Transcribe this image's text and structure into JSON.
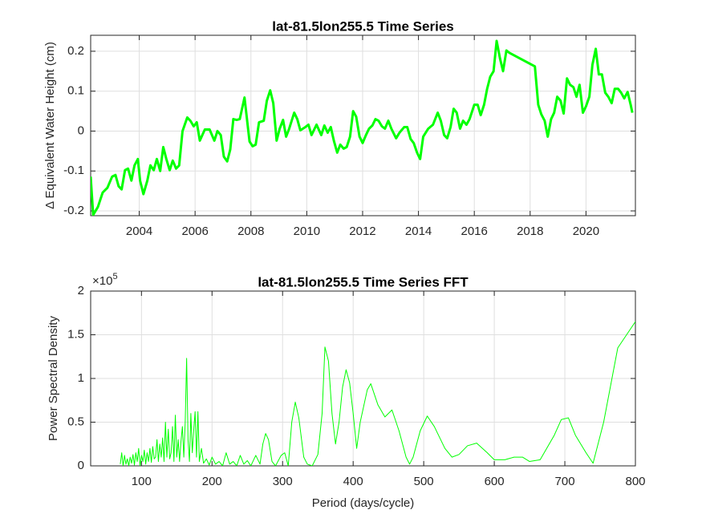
{
  "chart_data": [
    {
      "type": "line",
      "title": "lat-81.5lon255.5 Time Series",
      "y_label": "Δ  Equivalent Water Height (cm)",
      "color": "#00ff00",
      "line_width": 3,
      "grid": true,
      "xlim": [
        2002.26,
        2021.77
      ],
      "xticks": [
        2004,
        2006,
        2008,
        2010,
        2012,
        2014,
        2016,
        2018,
        2020
      ],
      "ylim": [
        -0.212,
        0.24
      ],
      "yticks": [
        -0.2,
        -0.1,
        0,
        0.1,
        0.2
      ],
      "x": [
        2002.26,
        2002.35,
        2002.52,
        2002.69,
        2002.86,
        2003.03,
        2003.15,
        2003.26,
        2003.37,
        2003.49,
        2003.6,
        2003.72,
        2003.83,
        2003.95,
        2004.03,
        2004.15,
        2004.29,
        2004.4,
        2004.52,
        2004.63,
        2004.75,
        2004.86,
        2004.97,
        2005.09,
        2005.2,
        2005.32,
        2005.43,
        2005.55,
        2005.72,
        2005.83,
        2005.95,
        2006.06,
        2006.17,
        2006.35,
        2006.52,
        2006.69,
        2006.8,
        2006.92,
        2007.03,
        2007.15,
        2007.26,
        2007.37,
        2007.49,
        2007.6,
        2007.77,
        2007.95,
        2008.06,
        2008.17,
        2008.29,
        2008.46,
        2008.57,
        2008.69,
        2008.8,
        2008.92,
        2009.03,
        2009.15,
        2009.26,
        2009.37,
        2009.55,
        2009.66,
        2009.77,
        2009.95,
        2010.06,
        2010.17,
        2010.35,
        2010.52,
        2010.63,
        2010.75,
        2010.86,
        2010.97,
        2011.09,
        2011.2,
        2011.32,
        2011.43,
        2011.55,
        2011.66,
        2011.77,
        2011.89,
        2012.0,
        2012.12,
        2012.23,
        2012.35,
        2012.46,
        2012.57,
        2012.69,
        2012.8,
        2012.92,
        2013.03,
        2013.2,
        2013.32,
        2013.49,
        2013.6,
        2013.72,
        2013.83,
        2013.95,
        2014.06,
        2014.17,
        2014.35,
        2014.52,
        2014.69,
        2014.8,
        2014.92,
        2015.03,
        2015.15,
        2015.26,
        2015.37,
        2015.49,
        2015.6,
        2015.72,
        2015.83,
        2016.0,
        2016.12,
        2016.23,
        2016.35,
        2016.46,
        2016.57,
        2016.69,
        2016.8,
        2016.92,
        2017.03,
        2017.15,
        2017.26,
        2018.17,
        2018.29,
        2018.4,
        2018.52,
        2018.63,
        2018.75,
        2018.86,
        2018.97,
        2019.09,
        2019.2,
        2019.32,
        2019.43,
        2019.55,
        2019.66,
        2019.77,
        2019.89,
        2020.0,
        2020.12,
        2020.23,
        2020.35,
        2020.46,
        2020.57,
        2020.69,
        2020.8,
        2020.92,
        2021.03,
        2021.15,
        2021.26,
        2021.37,
        2021.49,
        2021.6,
        2021.66
      ],
      "values": [
        -0.114,
        -0.21,
        -0.19,
        -0.154,
        -0.142,
        -0.114,
        -0.11,
        -0.138,
        -0.146,
        -0.098,
        -0.094,
        -0.124,
        -0.086,
        -0.07,
        -0.124,
        -0.158,
        -0.124,
        -0.086,
        -0.098,
        -0.07,
        -0.1,
        -0.04,
        -0.07,
        -0.098,
        -0.074,
        -0.094,
        -0.086,
        0,
        0.034,
        0.026,
        0.012,
        0.022,
        -0.024,
        0.004,
        0.004,
        -0.024,
        0,
        -0.01,
        -0.064,
        -0.076,
        -0.046,
        0.03,
        0.028,
        0.03,
        0.084,
        -0.026,
        -0.038,
        -0.034,
        0.022,
        0.026,
        0.076,
        0.102,
        0.07,
        -0.024,
        0.006,
        0.028,
        -0.014,
        0.006,
        0.046,
        0.03,
        0.002,
        0.01,
        0.016,
        -0.01,
        0.016,
        -0.01,
        0.014,
        -0.004,
        0.01,
        -0.024,
        -0.054,
        -0.034,
        -0.044,
        -0.04,
        -0.014,
        0.05,
        0.036,
        -0.014,
        -0.03,
        -0.01,
        0.006,
        0.014,
        0.03,
        0.026,
        0.012,
        0.006,
        0.026,
        0.006,
        -0.018,
        -0.004,
        0.01,
        0.01,
        -0.02,
        -0.03,
        -0.054,
        -0.07,
        -0.014,
        0.006,
        0.016,
        0.046,
        0.026,
        -0.01,
        -0.018,
        0.01,
        0.056,
        0.046,
        0.006,
        0.026,
        0.016,
        0.03,
        0.066,
        0.066,
        0.04,
        0.066,
        0.106,
        0.136,
        0.15,
        0.226,
        0.182,
        0.15,
        0.202,
        0.196,
        0.162,
        0.066,
        0.042,
        0.026,
        -0.014,
        0.03,
        0.046,
        0.086,
        0.076,
        0.044,
        0.132,
        0.116,
        0.11,
        0.086,
        0.116,
        0.046,
        0.062,
        0.086,
        0.166,
        0.206,
        0.142,
        0.142,
        0.096,
        0.086,
        0.07,
        0.106,
        0.106,
        0.096,
        0.082,
        0.098,
        0.066,
        0.046
      ]
    },
    {
      "type": "line",
      "title": "lat-81.5lon255.5 Time Series FFT",
      "y_label": "Power Spectral Density",
      "x_label": "Period (days/cycle)",
      "y_scale_label": {
        "base": "×10",
        "exponent": "5"
      },
      "color": "#00ff00",
      "line_width": 1,
      "grid": true,
      "xlim": [
        28,
        800
      ],
      "xticks": [
        100,
        200,
        300,
        400,
        500,
        600,
        700,
        800
      ],
      "ylim": [
        0,
        2
      ],
      "yticks": [
        0,
        0.5,
        1,
        1.5,
        2
      ],
      "x": [
        70,
        72,
        74,
        76,
        78,
        80,
        82,
        84,
        86,
        88,
        90,
        92,
        94,
        96,
        98,
        100,
        102,
        104,
        106,
        108,
        110,
        112,
        114,
        116,
        118,
        120,
        122,
        124,
        126,
        128,
        130,
        132,
        134,
        136,
        138,
        140,
        142,
        144,
        146,
        148,
        150,
        152,
        154,
        156,
        158,
        160,
        162,
        164,
        166,
        168,
        170,
        172,
        174,
        176,
        178,
        180,
        182,
        185,
        188,
        192,
        196,
        200,
        205,
        210,
        215,
        220,
        225,
        230,
        235,
        240,
        245,
        250,
        255,
        262,
        268,
        272,
        276,
        280,
        285,
        290,
        298,
        303,
        308,
        313,
        318,
        323,
        330,
        335,
        342,
        350,
        356,
        360,
        365,
        370,
        375,
        380,
        385,
        390,
        395,
        400,
        405,
        410,
        420,
        425,
        435,
        445,
        455,
        465,
        475,
        480,
        485,
        495,
        505,
        515,
        530,
        540,
        550,
        562,
        575,
        590,
        600,
        615,
        628,
        640,
        650,
        665,
        685,
        695,
        705,
        715,
        730,
        740,
        755,
        775,
        800
      ],
      "values": [
        0.02,
        0.15,
        0,
        0.12,
        0.02,
        0.08,
        0,
        0.1,
        0.03,
        0.13,
        0.01,
        0.15,
        0.05,
        0.2,
        0,
        0.12,
        0.05,
        0.18,
        0.02,
        0.15,
        0.05,
        0.2,
        0.04,
        0.22,
        0.08,
        0.1,
        0.3,
        0.05,
        0.25,
        0.1,
        0.32,
        0.05,
        0.5,
        0.1,
        0.42,
        0.08,
        0.15,
        0.45,
        0.05,
        0.58,
        0.1,
        0.3,
        0.05,
        0.28,
        0.45,
        0.1,
        0.5,
        1.23,
        0.3,
        0.05,
        0.6,
        0.15,
        0.4,
        0.62,
        0.1,
        0.62,
        0.05,
        0.2,
        0.03,
        0.08,
        0.01,
        0.1,
        0.02,
        0.05,
        0,
        0.15,
        0.02,
        0.05,
        0,
        0.12,
        0.02,
        0.06,
        0,
        0.12,
        0.02,
        0.25,
        0.37,
        0.3,
        0.05,
        0,
        0.12,
        0.15,
        0,
        0.5,
        0.73,
        0.55,
        0.1,
        0.02,
        0,
        0.13,
        0.6,
        1.36,
        1.2,
        0.6,
        0.25,
        0.5,
        0.9,
        1.1,
        0.95,
        0.6,
        0.2,
        0.5,
        0.87,
        0.94,
        0.7,
        0.56,
        0.64,
        0.4,
        0.1,
        0.02,
        0.1,
        0.4,
        0.57,
        0.45,
        0.2,
        0.1,
        0.13,
        0.23,
        0.26,
        0.15,
        0.07,
        0.07,
        0.1,
        0.1,
        0.05,
        0.07,
        0.35,
        0.53,
        0.55,
        0.35,
        0.15,
        0.03,
        0.5,
        1.35,
        1.65
      ]
    }
  ]
}
